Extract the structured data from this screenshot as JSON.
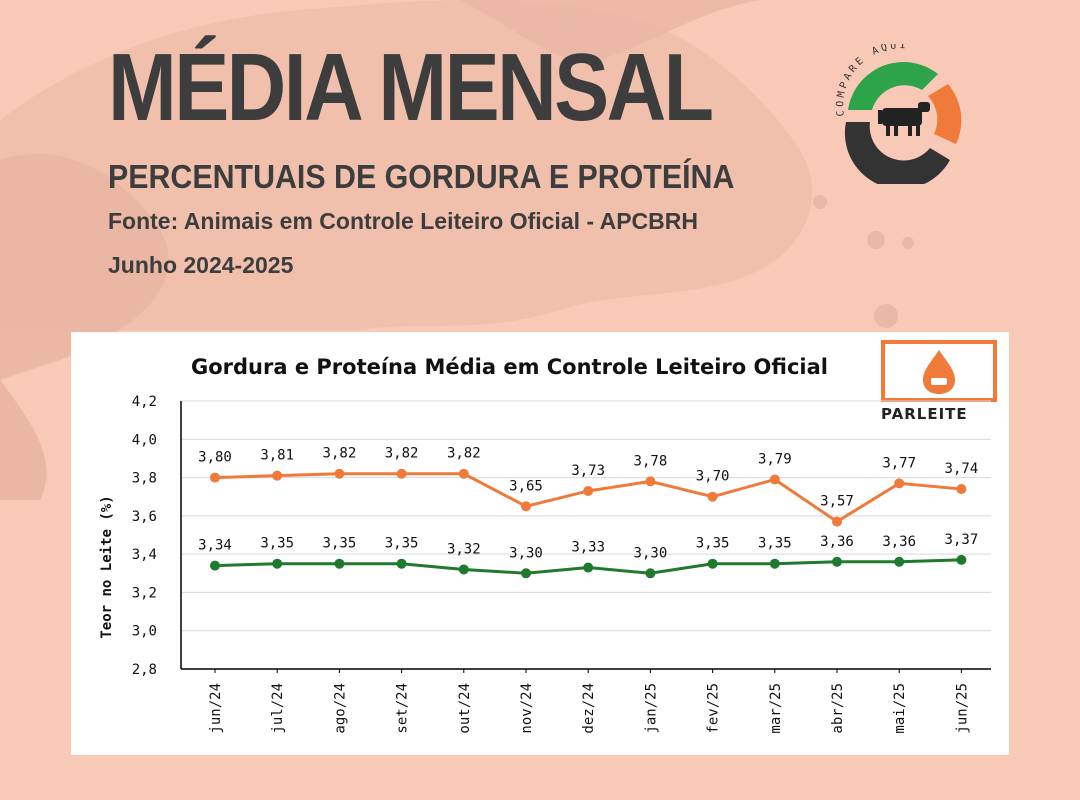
{
  "header": {
    "title": "MÉDIA MENSAL",
    "subtitle": "PERCENTUAIS DE GORDURA E PROTEÍNA",
    "source": "Fonte: Animais em Controle Leiteiro Oficial - APCBRH",
    "period": "Junho 2024-2025"
  },
  "logo": {
    "text": "COMPARE AQUI",
    "icon": "cow-icon",
    "colors": {
      "green": "#2ea44a",
      "orange": "#f07a3a",
      "dark": "#333333"
    }
  },
  "brand": {
    "label": "PARLEITE",
    "icon": "milk-drop-cow-icon",
    "color": "#f07a3a"
  },
  "colors": {
    "background": "#f7c9b6",
    "fat": "#f07a3a",
    "protein": "#1f7a2e",
    "text": "#3d3d3d"
  },
  "chart_data": {
    "type": "line",
    "title": "Gordura e Proteína Média em Controle Leiteiro Oficial",
    "xlabel": "",
    "ylabel": "Teor no Leite (%)",
    "ylim": [
      2.8,
      4.2
    ],
    "grid": true,
    "categories": [
      "jun/24",
      "jul/24",
      "ago/24",
      "set/24",
      "out/24",
      "nov/24",
      "dez/24",
      "jan/25",
      "fev/25",
      "mar/25",
      "abr/25",
      "mai/25",
      "jun/25"
    ],
    "y_ticks": [
      "2,8",
      "3,0",
      "3,2",
      "3,4",
      "3,6",
      "3,8",
      "4,0",
      "4,2"
    ],
    "series": [
      {
        "color": "#f07a3a",
        "values": [
          3.8,
          3.81,
          3.82,
          3.82,
          3.82,
          3.65,
          3.73,
          3.78,
          3.7,
          3.79,
          3.57,
          3.77,
          3.74
        ],
        "labels": [
          "3,80",
          "3,81",
          "3,82",
          "3,82",
          "3,82",
          "3,65",
          "3,73",
          "3,78",
          "3,70",
          "3,79",
          "3,57",
          "3,77",
          "3,74"
        ]
      },
      {
        "color": "#1f7a2e",
        "values": [
          3.34,
          3.35,
          3.35,
          3.35,
          3.32,
          3.3,
          3.33,
          3.3,
          3.35,
          3.35,
          3.36,
          3.36,
          3.37
        ],
        "labels": [
          "3,34",
          "3,35",
          "3,35",
          "3,35",
          "3,32",
          "3,30",
          "3,33",
          "3,30",
          "3,35",
          "3,35",
          "3,36",
          "3,36",
          "3,37"
        ]
      }
    ]
  }
}
